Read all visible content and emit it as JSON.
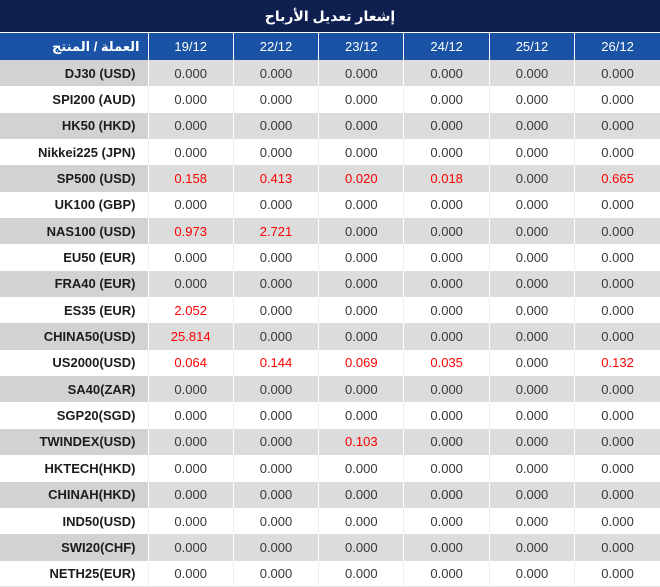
{
  "title": "إشعار تعديل الأرباح",
  "colors": {
    "title_bar_bg": "#0F2050",
    "header_bg": "#1A52A5",
    "header_text": "#FFFFFF",
    "stripe_bg": "#DCDCDC",
    "stripe_name_bg": "#D2D2D2",
    "value_text": "#373737",
    "highlight_text": "#FF0000"
  },
  "table": {
    "product_header": "العملة / المنتج",
    "date_columns": [
      "19/12",
      "22/12",
      "23/12",
      "24/12",
      "25/12",
      "26/12"
    ],
    "rows": [
      {
        "name": "DJ30 (USD)",
        "values": [
          "0.000",
          "0.000",
          "0.000",
          "0.000",
          "0.000",
          "0.000"
        ],
        "red": []
      },
      {
        "name": "SPI200 (AUD)",
        "values": [
          "0.000",
          "0.000",
          "0.000",
          "0.000",
          "0.000",
          "0.000"
        ],
        "red": []
      },
      {
        "name": "HK50 (HKD)",
        "values": [
          "0.000",
          "0.000",
          "0.000",
          "0.000",
          "0.000",
          "0.000"
        ],
        "red": []
      },
      {
        "name": "Nikkei225 (JPN)",
        "values": [
          "0.000",
          "0.000",
          "0.000",
          "0.000",
          "0.000",
          "0.000"
        ],
        "red": []
      },
      {
        "name": "SP500 (USD)",
        "values": [
          "0.158",
          "0.413",
          "0.020",
          "0.018",
          "0.000",
          "0.665"
        ],
        "red": [
          0,
          1,
          2,
          3,
          5
        ]
      },
      {
        "name": "UK100 (GBP)",
        "values": [
          "0.000",
          "0.000",
          "0.000",
          "0.000",
          "0.000",
          "0.000"
        ],
        "red": []
      },
      {
        "name": "NAS100 (USD)",
        "values": [
          "0.973",
          "2.721",
          "0.000",
          "0.000",
          "0.000",
          "0.000"
        ],
        "red": [
          0,
          1
        ]
      },
      {
        "name": "EU50 (EUR)",
        "values": [
          "0.000",
          "0.000",
          "0.000",
          "0.000",
          "0.000",
          "0.000"
        ],
        "red": []
      },
      {
        "name": "FRA40 (EUR)",
        "values": [
          "0.000",
          "0.000",
          "0.000",
          "0.000",
          "0.000",
          "0.000"
        ],
        "red": []
      },
      {
        "name": "ES35 (EUR)",
        "values": [
          "2.052",
          "0.000",
          "0.000",
          "0.000",
          "0.000",
          "0.000"
        ],
        "red": [
          0
        ]
      },
      {
        "name": "CHINA50(USD)",
        "values": [
          "25.814",
          "0.000",
          "0.000",
          "0.000",
          "0.000",
          "0.000"
        ],
        "red": [
          0
        ]
      },
      {
        "name": "US2000(USD)",
        "values": [
          "0.064",
          "0.144",
          "0.069",
          "0.035",
          "0.000",
          "0.132"
        ],
        "red": [
          0,
          1,
          2,
          3,
          5
        ]
      },
      {
        "name": "SA40(ZAR)",
        "values": [
          "0.000",
          "0.000",
          "0.000",
          "0.000",
          "0.000",
          "0.000"
        ],
        "red": []
      },
      {
        "name": "SGP20(SGD)",
        "values": [
          "0.000",
          "0.000",
          "0.000",
          "0.000",
          "0.000",
          "0.000"
        ],
        "red": []
      },
      {
        "name": "TWINDEX(USD)",
        "values": [
          "0.000",
          "0.000",
          "0.103",
          "0.000",
          "0.000",
          "0.000"
        ],
        "red": [
          2
        ]
      },
      {
        "name": "HKTECH(HKD)",
        "values": [
          "0.000",
          "0.000",
          "0.000",
          "0.000",
          "0.000",
          "0.000"
        ],
        "red": []
      },
      {
        "name": "CHINAH(HKD)",
        "values": [
          "0.000",
          "0.000",
          "0.000",
          "0.000",
          "0.000",
          "0.000"
        ],
        "red": []
      },
      {
        "name": "IND50(USD)",
        "values": [
          "0.000",
          "0.000",
          "0.000",
          "0.000",
          "0.000",
          "0.000"
        ],
        "red": []
      },
      {
        "name": "SWI20(CHF)",
        "values": [
          "0.000",
          "0.000",
          "0.000",
          "0.000",
          "0.000",
          "0.000"
        ],
        "red": []
      },
      {
        "name": "NETH25(EUR)",
        "values": [
          "0.000",
          "0.000",
          "0.000",
          "0.000",
          "0.000",
          "0.000"
        ],
        "red": []
      }
    ]
  }
}
